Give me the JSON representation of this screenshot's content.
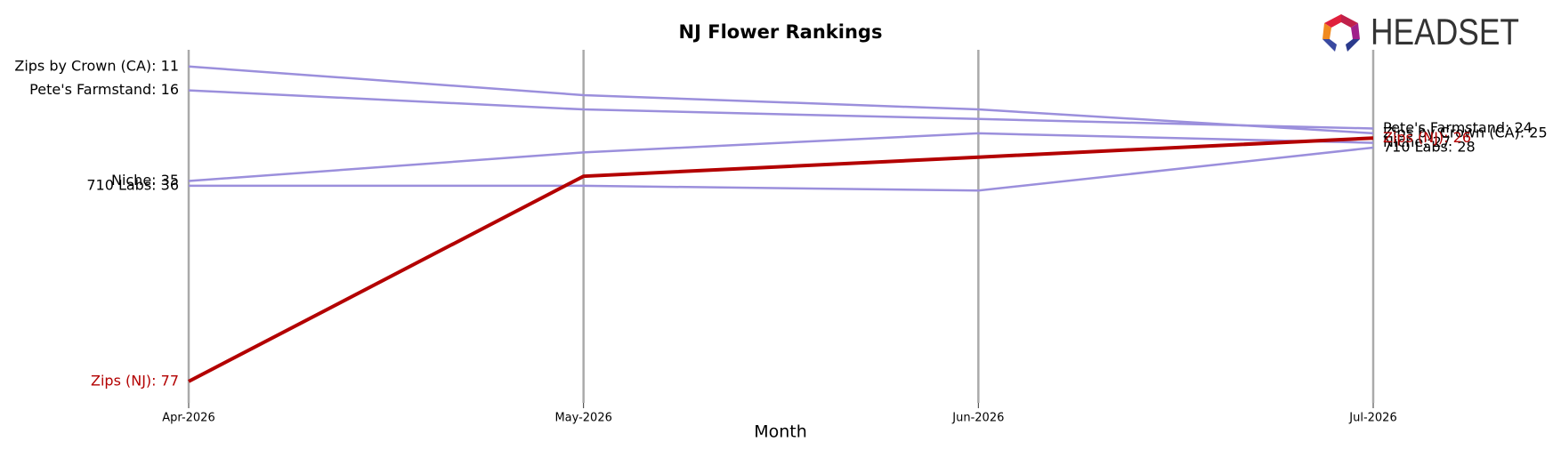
{
  "logo": {
    "text": "HEADSET"
  },
  "chart_data": {
    "type": "line",
    "title": "NJ Flower Rankings",
    "x_label": "Month",
    "categories": [
      "Apr-2026",
      "May-2026",
      "Jun-2026",
      "Jul-2026"
    ],
    "ylim": [
      7.5,
      81.5
    ],
    "y_inverted": true,
    "grid": true,
    "series": [
      {
        "name": "Zips by Crown (CA)",
        "color": "#9b8fdc",
        "label_color": "#000000",
        "values": [
          11,
          17,
          20,
          25
        ],
        "value_labels": [
          "Zips by Crown (CA): 11",
          null,
          null,
          "Zips by Crown (CA): 25"
        ]
      },
      {
        "name": "Pete's Farmstand",
        "color": "#9b8fdc",
        "label_color": "#000000",
        "values": [
          16,
          20,
          22,
          24
        ],
        "value_labels": [
          "Pete's Farmstand: 16",
          null,
          null,
          "Pete's Farmstand: 24"
        ]
      },
      {
        "name": "Niche",
        "color": "#9b8fdc",
        "label_color": "#000000",
        "values": [
          35,
          29,
          25,
          27
        ],
        "value_labels": [
          "Niche: 35",
          null,
          null,
          "Niche: 27"
        ]
      },
      {
        "name": "710 Labs",
        "color": "#9b8fdc",
        "label_color": "#000000",
        "values": [
          36,
          36,
          37,
          28
        ],
        "value_labels": [
          "710 Labs: 36",
          null,
          null,
          "710 Labs: 28"
        ]
      },
      {
        "name": "Zips (NJ)",
        "color": "#b30000",
        "label_color": "#b30000",
        "values": [
          77,
          34,
          30,
          26
        ],
        "value_labels": [
          "Zips (NJ): 77",
          null,
          null,
          "Zips (NJ): 26"
        ],
        "highlight": true
      }
    ]
  }
}
